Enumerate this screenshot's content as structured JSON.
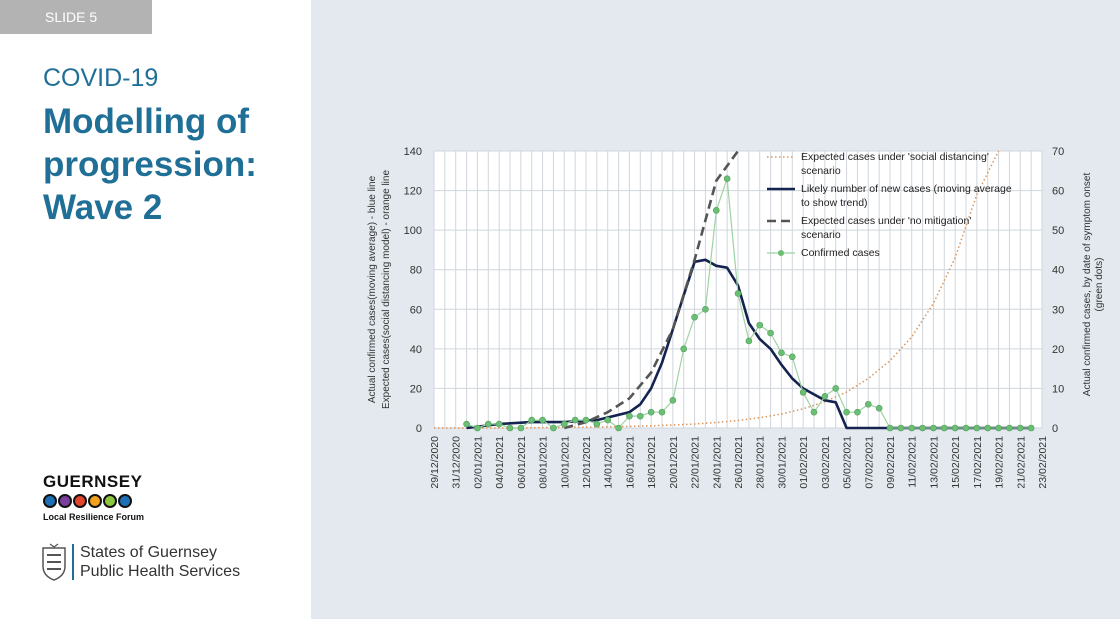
{
  "slide": {
    "tag": "SLIDE 5",
    "subtitle": "COVID-19",
    "title": "Modelling of progression: Wave 2"
  },
  "logos": {
    "lrf_name": "GUERNSEY",
    "lrf_sub": "Local Resilience Forum",
    "dots": [
      "#1d6fb8",
      "#7a3e9d",
      "#e2452b",
      "#f2a21c",
      "#8cc63f",
      "#1d6fb8"
    ],
    "sog_line1": "States of Guernsey",
    "sog_line2": "Public Health Services"
  },
  "chart_data": {
    "type": "line",
    "dates": [
      "29/12/2020",
      "31/12/2020",
      "02/01/2021",
      "04/01/2021",
      "06/01/2021",
      "08/01/2021",
      "10/01/2021",
      "12/01/2021",
      "14/01/2021",
      "16/01/2021",
      "18/01/2021",
      "20/01/2021",
      "22/01/2021",
      "24/01/2021",
      "26/01/2021",
      "28/01/2021",
      "30/01/2021",
      "01/02/2021",
      "03/02/2021",
      "05/02/2021",
      "07/02/2021",
      "09/02/2021",
      "11/02/2021",
      "13/02/2021",
      "15/02/2021",
      "17/02/2021",
      "19/02/2021",
      "21/02/2021",
      "23/02/2021"
    ],
    "y_left": {
      "label_line1": "Actual confirmed cases(moving average) - blue line",
      "label_line2": "Expected cases(social distancing model) - orange line",
      "ticks": [
        0,
        20,
        40,
        60,
        80,
        100,
        120,
        140
      ],
      "range": [
        0,
        140
      ]
    },
    "y_right": {
      "label_line1": "Actual confirmed cases, by date of symptom onset",
      "label_line2": "(green dots)",
      "ticks": [
        0,
        10,
        20,
        30,
        40,
        50,
        60,
        70
      ],
      "range": [
        0,
        70
      ]
    },
    "series": [
      {
        "name": "Expected cases under 'social distancing' scenario",
        "legend_line2": "scenario",
        "legend_line1": "Expected cases under 'social distancing'",
        "style": "dotted",
        "color": "#d9955b",
        "axis": "left",
        "x": [
          0,
          2,
          4,
          6,
          8,
          10,
          12,
          14,
          16,
          18,
          20,
          22,
          24,
          26,
          28,
          30,
          32,
          34,
          36,
          38,
          40,
          42,
          44,
          46,
          48,
          50,
          52
        ],
        "values": [
          0,
          0,
          0,
          0,
          0,
          0.2,
          0.3,
          0.4,
          0.6,
          0.8,
          1.1,
          1.5,
          2.0,
          2.8,
          3.8,
          5.2,
          7.1,
          9.7,
          13.3,
          18.2,
          25,
          34,
          46,
          63,
          86,
          118,
          140
        ]
      },
      {
        "name": "Likely number of new cases (moving average to show trend)",
        "legend_line1": "Likely number of new cases (moving average",
        "legend_line2": "to show trend)",
        "style": "solid",
        "color": "#14234f",
        "axis": "left",
        "x": [
          3,
          6,
          9,
          12,
          15,
          18,
          19,
          20,
          21,
          22,
          23,
          24,
          25,
          26,
          27,
          28,
          29,
          30,
          31,
          32,
          33,
          34,
          35,
          36,
          37,
          38,
          39,
          46,
          55
        ],
        "values": [
          0,
          2,
          3,
          3,
          4,
          8,
          12,
          20,
          33,
          50,
          67,
          84,
          85,
          82,
          81,
          72,
          53,
          45,
          40,
          32,
          25,
          20,
          17,
          14,
          13,
          0,
          0,
          0,
          0
        ]
      },
      {
        "name": "Expected cases under 'no mitigation' scenario",
        "legend_line1": "Expected cases under 'no mitigation'",
        "legend_line2": "scenario",
        "style": "dashed",
        "color": "#555555",
        "axis": "left",
        "x": [
          12,
          14,
          16,
          18,
          20,
          22,
          24,
          26,
          28
        ],
        "values": [
          0,
          3,
          8,
          15,
          28,
          50,
          85,
          125,
          140
        ]
      },
      {
        "name": "Confirmed cases",
        "legend_line1": "Confirmed cases",
        "style": "markers",
        "color": "#6bbf74",
        "axis": "right",
        "x": [
          3,
          4,
          5,
          6,
          7,
          8,
          9,
          10,
          11,
          12,
          13,
          14,
          15,
          16,
          17,
          18,
          19,
          20,
          21,
          22,
          23,
          24,
          25,
          26,
          27,
          28,
          29,
          30,
          31,
          32,
          33,
          34,
          35,
          36,
          37,
          38,
          39,
          40,
          41,
          42,
          43,
          44,
          45,
          46,
          47,
          48,
          49,
          50,
          51,
          52,
          53,
          54,
          55
        ],
        "values": [
          1,
          0,
          1,
          1,
          0,
          0,
          2,
          2,
          0,
          1,
          2,
          2,
          1,
          2,
          0,
          3,
          3,
          4,
          4,
          7,
          20,
          28,
          30,
          55,
          63,
          34,
          22,
          26,
          24,
          19,
          18,
          9,
          4,
          8,
          10,
          4,
          4,
          6,
          5,
          0,
          0,
          0,
          0,
          0,
          0,
          0,
          0,
          0,
          0,
          0,
          0,
          0,
          0
        ]
      }
    ]
  }
}
